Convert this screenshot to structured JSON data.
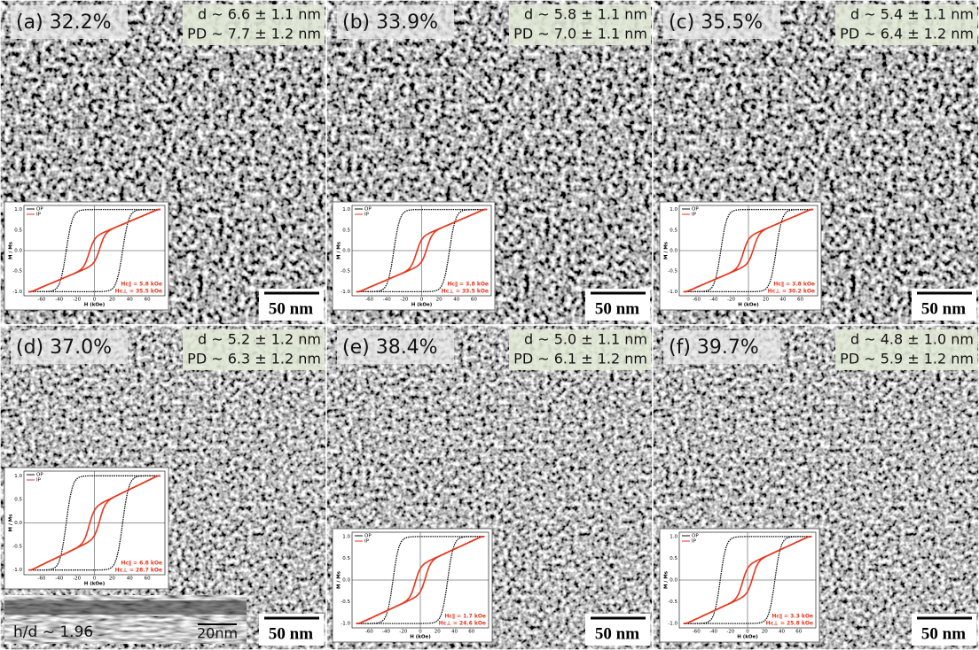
{
  "panels": [
    {
      "label": "(a) 32.2%",
      "size": "d ~ 6.6 ± 1.1 nm",
      "pd": "PD ~ 7.7 ± 1.2 nm",
      "scale_bar": "50 nm",
      "inset": {
        "hc_ip": "Hc∥ = 5.8 kOe",
        "hc_op": "Hc⊥ = 35.5 kOe"
      }
    },
    {
      "label": "(b) 33.9%",
      "size": "d ~ 5.8 ± 1.1 nm",
      "pd": "PD ~ 7.0 ± 1.1 nm",
      "scale_bar": "50 nm",
      "inset": {
        "hc_ip": "Hc∥ = 3.8 kOe",
        "hc_op": "Hc⊥ = 33.5 kOe"
      }
    },
    {
      "label": "(c) 35.5%",
      "size": "d ~ 5.4 ± 1.1 nm",
      "pd": "PD ~ 6.4 ± 1.2 nm",
      "scale_bar": "50 nm",
      "inset": {
        "hc_ip": "Hc∥ = 3.8 kOe",
        "hc_op": "Hc⊥ = 30.2 kOe"
      }
    },
    {
      "label": "(d) 37.0%",
      "size": "d ~ 5.2 ± 1.2 nm",
      "pd": "PD ~ 6.3 ± 1.2 nm",
      "scale_bar": "50 nm",
      "inset": {
        "hc_ip": "Hc∥ = 6.8 kOe",
        "hc_op": "Hc⊥ = 28.7 kOe"
      }
    },
    {
      "label": "(e) 38.4%",
      "size": "d ~ 5.0 ± 1.1 nm",
      "pd": "PD ~ 6.1 ± 1.2 nm",
      "scale_bar": "50 nm",
      "inset": {
        "hc_ip": "Hc∥ = 1.7 kOe",
        "hc_op": "Hc⊥ = 24.6 kOe"
      }
    },
    {
      "label": "(f) 39.7%",
      "size": "d ~ 4.8 ± 1.0 nm",
      "pd": "PD ~ 5.9 ± 1.2 nm",
      "scale_bar": "50 nm",
      "inset": {
        "hc_ip": "Hc∥ = 3.3 kOe",
        "hc_op": "Hc⊥ = 25.8 kOe"
      }
    }
  ],
  "inset_axes": {
    "legend": [
      "OP",
      "IP"
    ],
    "x_label": "H (kOe)",
    "y_label": "M / Ms",
    "xticks": [
      "-60",
      "-40",
      "-20",
      "0",
      "20",
      "40",
      "60"
    ],
    "yticks": [
      "1.0",
      "0.5",
      "0.0",
      "-0.5",
      "-1.0"
    ]
  },
  "cross_section": {
    "ratio": "h/d ~ 1.96",
    "scale_bar": "20nm"
  }
}
